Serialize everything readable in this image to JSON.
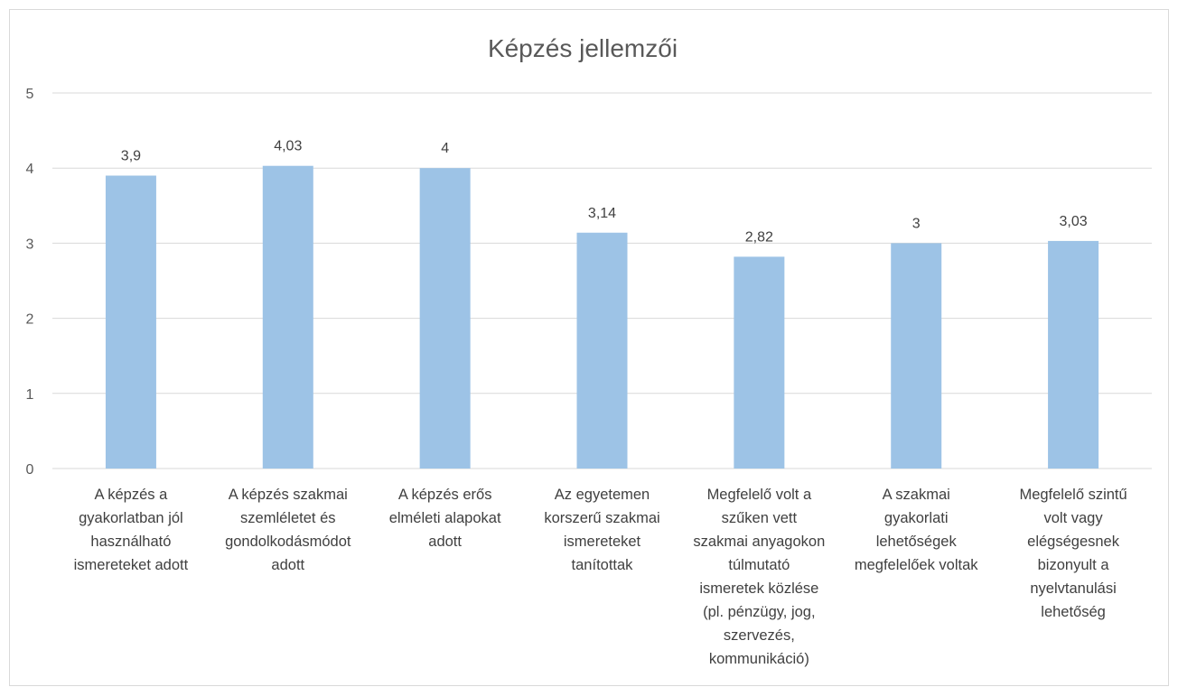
{
  "chart_data": {
    "type": "bar",
    "title": "Képzés jellemzői",
    "xlabel": "",
    "ylabel": "",
    "ylim": [
      0,
      5
    ],
    "yticks": [
      0,
      1,
      2,
      3,
      4,
      5
    ],
    "grid": true,
    "legend": "none",
    "bar_color": "#9dc3e6",
    "categories": [
      [
        "A képzés a",
        "gyakorlatban jól",
        "használható",
        "ismereteket adott"
      ],
      [
        "A képzés szakmai",
        "szemléletet és",
        "gondolkodásmódot",
        "adott"
      ],
      [
        "A képzés erős",
        "elméleti alapokat",
        "adott"
      ],
      [
        "Az egyetemen",
        "korszerű szakmai",
        "ismereteket",
        "tanítottak"
      ],
      [
        "Megfelelő volt a",
        "szűken vett",
        "szakmai anyagokon",
        "túlmutató",
        "ismeretek közlése",
        "(pl. pénzügy, jog,",
        "szervezés,",
        "kommunikáció)"
      ],
      [
        "A szakmai",
        "gyakorlati",
        "lehetőségek",
        "megfelelőek voltak"
      ],
      [
        "Megfelelő szintű",
        "volt vagy",
        "elégségesnek",
        "bizonyult a",
        "nyelvtanulási",
        "lehetőség"
      ]
    ],
    "values": [
      3.9,
      4.03,
      4,
      3.14,
      2.82,
      3,
      3.03
    ],
    "data_labels": [
      "3,9",
      "4,03",
      "4",
      "3,14",
      "2,82",
      "3",
      "3,03"
    ]
  }
}
